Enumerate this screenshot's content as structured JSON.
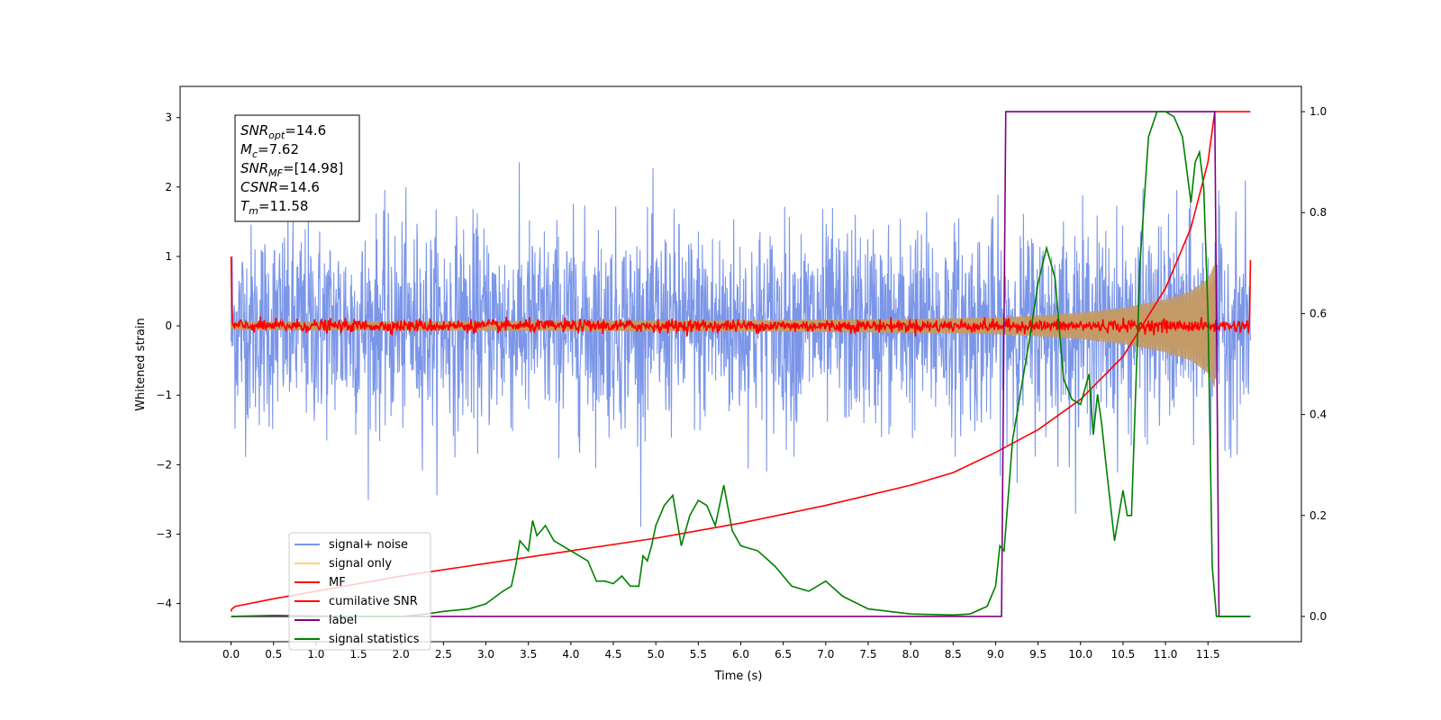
{
  "chart_data": {
    "type": "line",
    "title": "",
    "xlabel": "Time (s)",
    "ylabel": "Whitened strain",
    "xlim": [
      -0.6,
      12.6
    ],
    "ylim": [
      -4.55,
      3.45
    ],
    "ylim_right": [
      -0.05,
      1.05
    ],
    "xticks": [
      0.0,
      0.5,
      1.0,
      1.5,
      2.0,
      2.5,
      3.0,
      3.5,
      4.0,
      4.5,
      5.0,
      5.5,
      6.0,
      6.5,
      7.0,
      7.5,
      8.0,
      8.5,
      9.0,
      9.5,
      10.0,
      10.5,
      11.0,
      11.5
    ],
    "xtick_labels": [
      "0.0",
      "0.5",
      "1.0",
      "1.5",
      "2.0",
      "2.5",
      "3.0",
      "3.5",
      "4.0",
      "4.5",
      "5.0",
      "5.5",
      "6.0",
      "6.5",
      "7.0",
      "7.5",
      "8.0",
      "8.5",
      "9.0",
      "9.5",
      "10.0",
      "10.5",
      "11.0",
      "11.5"
    ],
    "yticks_left": [
      3,
      2,
      1,
      0,
      -1,
      -2,
      -3,
      -4
    ],
    "ytick_labels_left": [
      "3",
      "2",
      "1",
      "0",
      "−1",
      "−2",
      "−3",
      "−4"
    ],
    "yticks_right": [
      1.0,
      0.8,
      0.6,
      0.4,
      0.2,
      0.0
    ],
    "ytick_labels_right": [
      "1.0",
      "0.8",
      "0.6",
      "0.4",
      "0.2",
      "0.0"
    ],
    "grid": false,
    "legend_position": "lower-left",
    "annotation": {
      "lines": [
        {
          "sym": "SNR",
          "sub": "opt",
          "value": "=14.6"
        },
        {
          "sym": "M",
          "sub": "c",
          "value": "=7.62"
        },
        {
          "sym": "SNR",
          "sub": "MF",
          "value": "=[14.98]"
        },
        {
          "sym": "CSNR",
          "sub": "",
          "value": "=14.6"
        },
        {
          "sym": "T",
          "sub": "m",
          "value": "=11.58"
        }
      ]
    },
    "series": [
      {
        "name": "signal+ noise",
        "color": "#7b96e8",
        "axis": "left",
        "kind": "noise",
        "t_start": 0.0,
        "t_end": 12.0,
        "amplitude_range": [
          -3.2,
          3.1
        ]
      },
      {
        "name": "signal only",
        "color": "#c49a66",
        "axis": "left",
        "kind": "chirp_envelope",
        "t_start": 0.0,
        "t_end": 11.58,
        "envelope": [
          [
            0.0,
            0.06
          ],
          [
            6.0,
            0.08
          ],
          [
            8.0,
            0.1
          ],
          [
            9.0,
            0.12
          ],
          [
            9.5,
            0.15
          ],
          [
            10.0,
            0.19
          ],
          [
            10.5,
            0.26
          ],
          [
            11.0,
            0.38
          ],
          [
            11.3,
            0.5
          ],
          [
            11.5,
            0.68
          ],
          [
            11.58,
            0.9
          ]
        ]
      },
      {
        "name": "MF",
        "color": "#ff0000",
        "axis": "left",
        "kind": "mf_noise",
        "t_start": 0.0,
        "t_end": 12.0,
        "spike_start": 1.0,
        "spike_end": 0.95
      },
      {
        "name": "cumilative SNR",
        "color": "#ff0000",
        "axis": "right",
        "kind": "line",
        "x": [
          0.0,
          0.01,
          0.05,
          0.5,
          1.0,
          2.0,
          3.0,
          4.0,
          5.0,
          6.0,
          7.0,
          8.0,
          8.5,
          9.0,
          9.5,
          10.0,
          10.5,
          11.0,
          11.3,
          11.5,
          11.58,
          12.0
        ],
        "y": [
          0.01,
          0.015,
          0.02,
          0.035,
          0.05,
          0.08,
          0.105,
          0.13,
          0.155,
          0.185,
          0.22,
          0.26,
          0.285,
          0.325,
          0.37,
          0.43,
          0.515,
          0.65,
          0.77,
          0.9,
          1.0,
          1.0
        ]
      },
      {
        "name": "label",
        "color": "#800080",
        "axis": "right",
        "kind": "line",
        "x": [
          0.0,
          9.07,
          9.12,
          11.58,
          11.63,
          12.0
        ],
        "y": [
          0.0,
          0.0,
          1.0,
          1.0,
          0.0,
          0.0
        ]
      },
      {
        "name": "signal statistics",
        "color": "#008000",
        "axis": "right",
        "kind": "line",
        "x": [
          0.0,
          0.5,
          1.0,
          1.5,
          2.0,
          2.3,
          2.5,
          2.8,
          3.0,
          3.2,
          3.3,
          3.35,
          3.4,
          3.5,
          3.55,
          3.6,
          3.7,
          3.8,
          3.9,
          4.0,
          4.1,
          4.2,
          4.3,
          4.4,
          4.5,
          4.6,
          4.7,
          4.8,
          4.85,
          4.9,
          4.95,
          5.0,
          5.1,
          5.2,
          5.3,
          5.4,
          5.5,
          5.6,
          5.7,
          5.8,
          5.9,
          6.0,
          6.2,
          6.4,
          6.6,
          6.8,
          7.0,
          7.2,
          7.5,
          8.0,
          8.5,
          8.7,
          8.9,
          9.0,
          9.05,
          9.1,
          9.2,
          9.3,
          9.4,
          9.5,
          9.6,
          9.7,
          9.8,
          9.9,
          10.0,
          10.1,
          10.15,
          10.2,
          10.25,
          10.3,
          10.4,
          10.5,
          10.55,
          10.6,
          10.7,
          10.8,
          10.9,
          11.0,
          11.1,
          11.2,
          11.3,
          11.35,
          11.4,
          11.45,
          11.5,
          11.55,
          11.6,
          11.7,
          11.8,
          11.9,
          12.0
        ],
        "y": [
          0.0,
          0.002,
          0.001,
          0.0,
          0.0,
          0.005,
          0.01,
          0.015,
          0.025,
          0.05,
          0.06,
          0.1,
          0.15,
          0.13,
          0.19,
          0.16,
          0.18,
          0.15,
          0.14,
          0.13,
          0.12,
          0.11,
          0.07,
          0.07,
          0.065,
          0.08,
          0.06,
          0.06,
          0.12,
          0.11,
          0.14,
          0.18,
          0.22,
          0.24,
          0.14,
          0.2,
          0.23,
          0.22,
          0.18,
          0.26,
          0.17,
          0.14,
          0.13,
          0.1,
          0.06,
          0.05,
          0.07,
          0.04,
          0.015,
          0.005,
          0.003,
          0.005,
          0.02,
          0.06,
          0.14,
          0.13,
          0.35,
          0.45,
          0.55,
          0.66,
          0.73,
          0.67,
          0.47,
          0.43,
          0.42,
          0.48,
          0.36,
          0.44,
          0.38,
          0.3,
          0.15,
          0.25,
          0.2,
          0.2,
          0.7,
          0.95,
          1.0,
          1.0,
          0.99,
          0.95,
          0.82,
          0.9,
          0.92,
          0.85,
          0.6,
          0.1,
          0.0,
          0.0,
          0.0,
          0.0,
          0.0
        ]
      }
    ]
  }
}
